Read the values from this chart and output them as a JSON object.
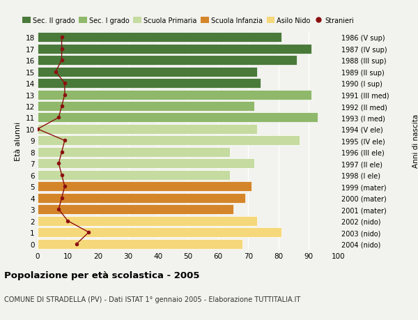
{
  "ages": [
    0,
    1,
    2,
    3,
    4,
    5,
    6,
    7,
    8,
    9,
    10,
    11,
    12,
    13,
    14,
    15,
    16,
    17,
    18
  ],
  "bar_values": [
    68,
    81,
    73,
    65,
    69,
    71,
    64,
    72,
    64,
    87,
    73,
    93,
    72,
    91,
    74,
    73,
    86,
    91,
    81
  ],
  "bar_colors": [
    "#f5d87a",
    "#f5d87a",
    "#f5d87a",
    "#d4852a",
    "#d4852a",
    "#d4852a",
    "#c5dba0",
    "#c5dba0",
    "#c5dba0",
    "#c5dba0",
    "#c5dba0",
    "#8fb86a",
    "#8fb86a",
    "#8fb86a",
    "#4a7a3a",
    "#4a7a3a",
    "#4a7a3a",
    "#4a7a3a",
    "#4a7a3a"
  ],
  "stranieri_values": [
    13,
    17,
    10,
    7,
    8,
    9,
    8,
    7,
    8,
    9,
    0,
    7,
    8,
    9,
    9,
    6,
    8,
    8,
    8
  ],
  "right_labels": [
    "2004 (nido)",
    "2003 (nido)",
    "2002 (nido)",
    "2001 (mater)",
    "2000 (mater)",
    "1999 (mater)",
    "1998 (I ele)",
    "1997 (II ele)",
    "1996 (III ele)",
    "1995 (IV ele)",
    "1994 (V ele)",
    "1993 (I med)",
    "1992 (II med)",
    "1991 (III med)",
    "1990 (I sup)",
    "1989 (II sup)",
    "1988 (III sup)",
    "1987 (IV sup)",
    "1986 (V sup)"
  ],
  "legend_labels": [
    "Sec. II grado",
    "Sec. I grado",
    "Scuola Primaria",
    "Scuola Infanzia",
    "Asilo Nido",
    "Stranieri"
  ],
  "legend_colors": [
    "#4a7a3a",
    "#8fb86a",
    "#c5dba0",
    "#d4852a",
    "#f5d87a",
    "#8b0000"
  ],
  "title": "Popolazione per età scolastica - 2005",
  "subtitle": "COMUNE DI STRADELLA (PV) - Dati ISTAT 1° gennaio 2005 - Elaborazione TUTTITALIA.IT",
  "ylabel_left": "Età alunni",
  "ylabel_right": "Anni di nascita",
  "xlim": [
    0,
    100
  ],
  "bg_color": "#f2f2ee",
  "grid_color": "#ffffff",
  "bar_height": 0.85
}
